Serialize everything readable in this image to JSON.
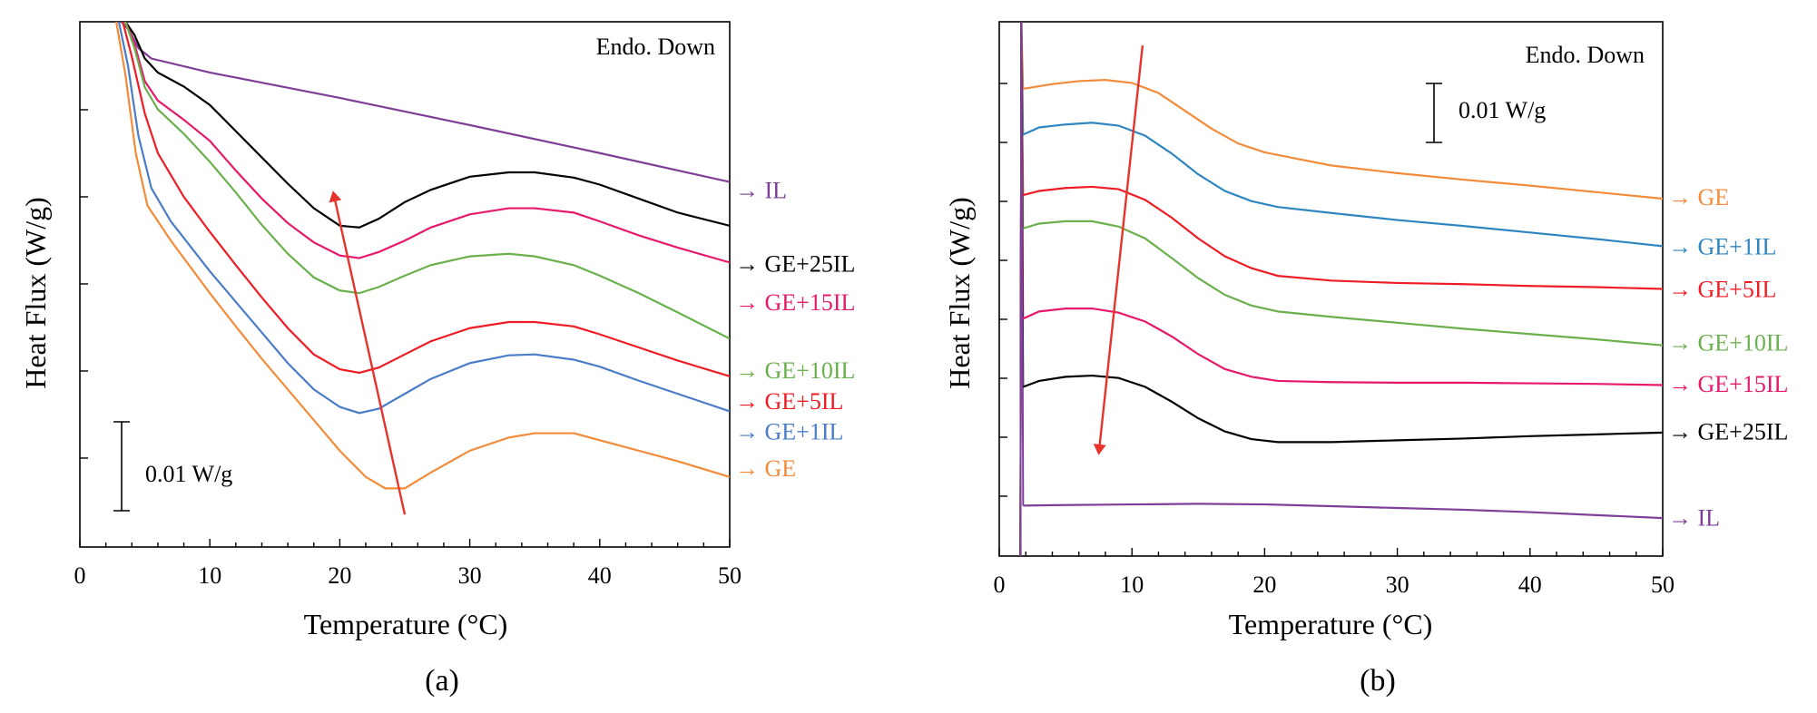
{
  "chart_data": [
    {
      "type": "line",
      "panel": "a",
      "panel_label": "(a)",
      "xlabel": "Temperature (°C)",
      "ylabel": "Heat Flux (W/g)",
      "xlim": [
        0,
        50
      ],
      "ylim": [
        -0.06,
        0.0
      ],
      "xticks": [
        0,
        10,
        20,
        30,
        40,
        50
      ],
      "annotation": "Endo. Down",
      "scale_bar_label": "0.01 W/g",
      "scale_bar_value": 0.01,
      "arrow": {
        "from": [
          25,
          -0.0563
        ],
        "to": [
          19.5,
          -0.0195
        ],
        "color": "#e8332b"
      },
      "series": [
        {
          "name": "IL",
          "label": "IL",
          "color": "#7f3f98",
          "label_y": -0.0192,
          "x": [
            3.2,
            3.8,
            4.5,
            5.5,
            10,
            20,
            30,
            40,
            50
          ],
          "y": [
            0.0,
            -0.001,
            -0.003,
            -0.0042,
            -0.0058,
            -0.0087,
            -0.0118,
            -0.015,
            -0.0183
          ]
        },
        {
          "name": "GE+25IL",
          "label": "GE+25IL",
          "color": "#000000",
          "label_y": -0.0276,
          "x": [
            3.5,
            4.2,
            5,
            6,
            8,
            10,
            12,
            14,
            16,
            18,
            20,
            21.5,
            23,
            25,
            27,
            30,
            33,
            35,
            38,
            40,
            43,
            46,
            50
          ],
          "y": [
            0.0,
            -0.0015,
            -0.0042,
            -0.0058,
            -0.0074,
            -0.0095,
            -0.0125,
            -0.0155,
            -0.0185,
            -0.0213,
            -0.0233,
            -0.0235,
            -0.0225,
            -0.0206,
            -0.0192,
            -0.0177,
            -0.0172,
            -0.0172,
            -0.0178,
            -0.0186,
            -0.0202,
            -0.0218,
            -0.0233
          ]
        },
        {
          "name": "GE+15IL",
          "label": "GE+15IL",
          "color": "#e6196b",
          "label_y": -0.032,
          "x": [
            3.5,
            4.2,
            5,
            6,
            8,
            10,
            12,
            14,
            16,
            18,
            20,
            21.5,
            23,
            25,
            27,
            30,
            33,
            35,
            38,
            40,
            43,
            46,
            50
          ],
          "y": [
            0.0,
            -0.0025,
            -0.0068,
            -0.009,
            -0.0112,
            -0.0136,
            -0.017,
            -0.0202,
            -0.023,
            -0.0252,
            -0.0267,
            -0.027,
            -0.0263,
            -0.025,
            -0.0235,
            -0.022,
            -0.0213,
            -0.0213,
            -0.0218,
            -0.0228,
            -0.0244,
            -0.0258,
            -0.0275
          ]
        },
        {
          "name": "GE+10IL",
          "label": "GE+10IL",
          "color": "#6ab04c",
          "label_y": -0.0398,
          "x": [
            3.5,
            4.2,
            5,
            6,
            8,
            10,
            12,
            14,
            16,
            18,
            20,
            21.5,
            23,
            25,
            27,
            30,
            33,
            35,
            38,
            40,
            43,
            46,
            50
          ],
          "y": [
            0.0,
            -0.003,
            -0.0075,
            -0.01,
            -0.0128,
            -0.016,
            -0.0195,
            -0.0232,
            -0.0265,
            -0.0292,
            -0.0307,
            -0.031,
            -0.0303,
            -0.029,
            -0.0278,
            -0.0268,
            -0.0265,
            -0.0268,
            -0.0278,
            -0.029,
            -0.031,
            -0.0332,
            -0.0362
          ]
        },
        {
          "name": "GE+5IL",
          "label": "GE+5IL",
          "color": "#ee1c25",
          "label_y": -0.0433,
          "x": [
            3.3,
            4.0,
            5,
            6,
            8,
            10,
            12,
            14,
            16,
            18,
            20,
            21.5,
            23,
            25,
            27,
            30,
            33,
            35,
            38,
            40,
            43,
            46,
            50
          ],
          "y": [
            0.0,
            -0.004,
            -0.0105,
            -0.015,
            -0.02,
            -0.024,
            -0.0278,
            -0.0315,
            -0.035,
            -0.038,
            -0.0397,
            -0.0401,
            -0.0395,
            -0.038,
            -0.0365,
            -0.035,
            -0.0343,
            -0.0343,
            -0.0348,
            -0.0357,
            -0.0372,
            -0.0387,
            -0.0405
          ]
        },
        {
          "name": "GE+1IL",
          "label": "GE+1IL",
          "color": "#4a7cc7",
          "label_y": -0.0468,
          "x": [
            3.0,
            3.7,
            4.5,
            5.5,
            7,
            10,
            12,
            14,
            16,
            18,
            20,
            21.5,
            23,
            25,
            27,
            30,
            33,
            35,
            38,
            40,
            43,
            46,
            50
          ],
          "y": [
            0.0,
            -0.005,
            -0.013,
            -0.019,
            -0.0228,
            -0.0285,
            -0.032,
            -0.0355,
            -0.039,
            -0.042,
            -0.044,
            -0.0447,
            -0.0442,
            -0.0425,
            -0.0408,
            -0.039,
            -0.0381,
            -0.038,
            -0.0386,
            -0.0394,
            -0.041,
            -0.0425,
            -0.0445
          ]
        },
        {
          "name": "GE",
          "label": "GE",
          "color": "#f28c3a",
          "label_y": -0.051,
          "x": [
            2.8,
            3.5,
            4.3,
            5.2,
            7,
            10,
            12,
            14,
            16,
            18,
            20,
            22,
            23.5,
            25,
            27,
            30,
            33,
            35,
            38,
            40,
            43,
            46,
            50
          ],
          "y": [
            0.0,
            -0.006,
            -0.015,
            -0.021,
            -0.025,
            -0.031,
            -0.0348,
            -0.0385,
            -0.042,
            -0.0455,
            -0.049,
            -0.052,
            -0.0533,
            -0.0533,
            -0.0515,
            -0.049,
            -0.0475,
            -0.047,
            -0.047,
            -0.0478,
            -0.049,
            -0.0502,
            -0.052
          ]
        }
      ]
    },
    {
      "type": "line",
      "panel": "b",
      "panel_label": "(b)",
      "xlabel": "Temperature (°C)",
      "ylabel": "Heat Flux (W/g)",
      "xlim": [
        0,
        50
      ],
      "ylim": [
        -0.09,
        0.0
      ],
      "xticks": [
        0,
        10,
        20,
        30,
        40,
        50
      ],
      "annotation": "Endo. Down",
      "scale_bar_label": "0.01 W/g",
      "scale_bar_value": 0.01,
      "arrow": {
        "from": [
          10.8,
          -0.004
        ],
        "to": [
          7.5,
          -0.0727
        ],
        "color": "#e8332b"
      },
      "series": [
        {
          "name": "GE",
          "label": "GE",
          "color": "#f28c3a",
          "label_y": -0.0295,
          "x": [
            1.8,
            4,
            6,
            8,
            10,
            12,
            14,
            16,
            18,
            20,
            25,
            30,
            35,
            40,
            45,
            50
          ],
          "y": [
            -0.0113,
            -0.0105,
            -0.01,
            -0.0098,
            -0.0103,
            -0.012,
            -0.015,
            -0.018,
            -0.0205,
            -0.022,
            -0.0242,
            -0.0255,
            -0.0266,
            -0.0276,
            -0.0287,
            -0.0298
          ]
        },
        {
          "name": "GE+1IL",
          "label": "GE+1IL",
          "color": "#2e86c1",
          "label_y": -0.0378,
          "x": [
            1.8,
            3,
            5,
            7,
            9,
            11,
            13,
            15,
            17,
            19,
            21,
            25,
            30,
            35,
            40,
            45,
            50
          ],
          "y": [
            -0.019,
            -0.0178,
            -0.0173,
            -0.017,
            -0.0175,
            -0.0192,
            -0.0222,
            -0.0257,
            -0.0285,
            -0.0302,
            -0.0312,
            -0.0322,
            -0.0334,
            -0.0344,
            -0.0355,
            -0.0366,
            -0.0378
          ]
        },
        {
          "name": "GE+5IL",
          "label": "GE+5IL",
          "color": "#ee1c25",
          "label_y": -0.045,
          "x": [
            1.8,
            3,
            5,
            7,
            9,
            11,
            13,
            15,
            17,
            19,
            21,
            25,
            30,
            35,
            40,
            45,
            50
          ],
          "y": [
            -0.0292,
            -0.0285,
            -0.028,
            -0.0278,
            -0.0282,
            -0.03,
            -0.033,
            -0.0365,
            -0.0395,
            -0.0415,
            -0.0428,
            -0.0436,
            -0.044,
            -0.0442,
            -0.0445,
            -0.0447,
            -0.045
          ]
        },
        {
          "name": "GE+10IL",
          "label": "GE+10IL",
          "color": "#6ab04c",
          "label_y": -0.054,
          "x": [
            1.8,
            3,
            5,
            7,
            9,
            11,
            13,
            15,
            17,
            19,
            21,
            25,
            30,
            35,
            40,
            45,
            50
          ],
          "y": [
            -0.0348,
            -0.034,
            -0.0336,
            -0.0336,
            -0.0345,
            -0.0365,
            -0.0398,
            -0.0432,
            -0.046,
            -0.0478,
            -0.0488,
            -0.0497,
            -0.0507,
            -0.0517,
            -0.0526,
            -0.0535,
            -0.0545
          ]
        },
        {
          "name": "GE+15IL",
          "label": "GE+15IL",
          "color": "#e6196b",
          "label_y": -0.061,
          "x": [
            1.8,
            3,
            5,
            7,
            9,
            11,
            13,
            15,
            17,
            19,
            21,
            25,
            30,
            35,
            40,
            45,
            50
          ],
          "y": [
            -0.05,
            -0.0488,
            -0.0483,
            -0.0483,
            -0.049,
            -0.0505,
            -0.053,
            -0.056,
            -0.0585,
            -0.0598,
            -0.0605,
            -0.0607,
            -0.0608,
            -0.0608,
            -0.0609,
            -0.061,
            -0.0612
          ]
        },
        {
          "name": "GE+25IL",
          "label": "GE+25IL",
          "color": "#000000",
          "label_y": -0.069,
          "x": [
            1.8,
            3,
            5,
            7,
            9,
            11,
            13,
            15,
            17,
            19,
            21,
            25,
            30,
            35,
            40,
            45,
            50
          ],
          "y": [
            -0.0615,
            -0.0605,
            -0.0598,
            -0.0596,
            -0.06,
            -0.0615,
            -0.064,
            -0.0668,
            -0.069,
            -0.0703,
            -0.0708,
            -0.0708,
            -0.0705,
            -0.0702,
            -0.0698,
            -0.0695,
            -0.0692
          ]
        },
        {
          "name": "IL",
          "label": "IL",
          "color": "#7f3f98",
          "label_y": -0.0835,
          "x": [
            1.8,
            5,
            10,
            15,
            20,
            25,
            30,
            35,
            40,
            45,
            50
          ],
          "y": [
            -0.0815,
            -0.0814,
            -0.0813,
            -0.0812,
            -0.0813,
            -0.0816,
            -0.0819,
            -0.0822,
            -0.0826,
            -0.0831,
            -0.0836
          ]
        }
      ]
    }
  ]
}
